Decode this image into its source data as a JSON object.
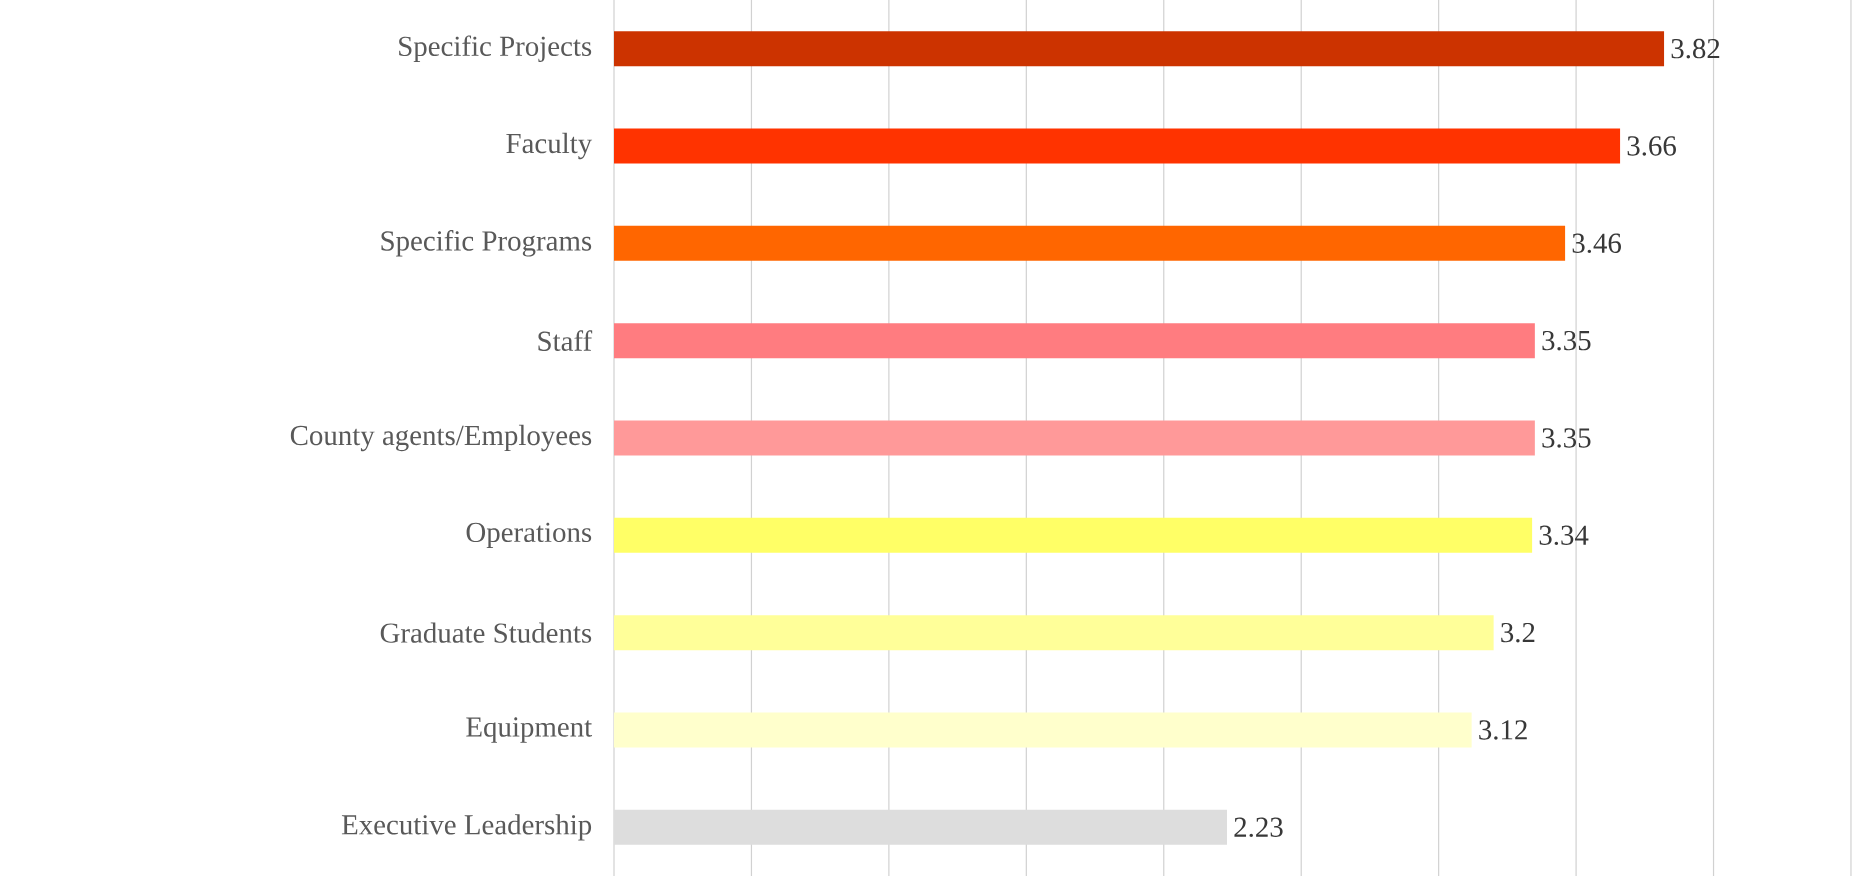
{
  "chart_data": {
    "type": "bar",
    "orientation": "horizontal",
    "categories": [
      "Specific Projects",
      "Faculty",
      "Specific Programs",
      "Staff",
      "County agents/Employees",
      "Operations",
      "Graduate Students",
      "Equipment",
      "Executive Leadership"
    ],
    "values": [
      3.82,
      3.66,
      3.46,
      3.35,
      3.35,
      3.34,
      3.2,
      3.12,
      2.23
    ],
    "colors": [
      "#cc3300",
      "#ff3300",
      "#ff6600",
      "#ff7c80",
      "#ff9999",
      "#ffff66",
      "#ffff99",
      "#ffffcc",
      "#dddddd"
    ],
    "xlim": [
      0,
      4.5
    ],
    "xticks": [
      {
        "value": 0,
        "label": null
      },
      {
        "value": 0.5,
        "label": null
      },
      {
        "value": 1,
        "label": null
      },
      {
        "value": 1.5,
        "label": null
      },
      {
        "value": 2,
        "label": null
      },
      {
        "value": 2.5,
        "label": null
      },
      {
        "value": 3,
        "label": null
      },
      {
        "value": 3.5,
        "label": null
      },
      {
        "value": 4,
        "label": null
      },
      {
        "value": 4.5,
        "label": null
      }
    ],
    "grid": "x",
    "tick_labels": "y",
    "data_labels": true
  }
}
